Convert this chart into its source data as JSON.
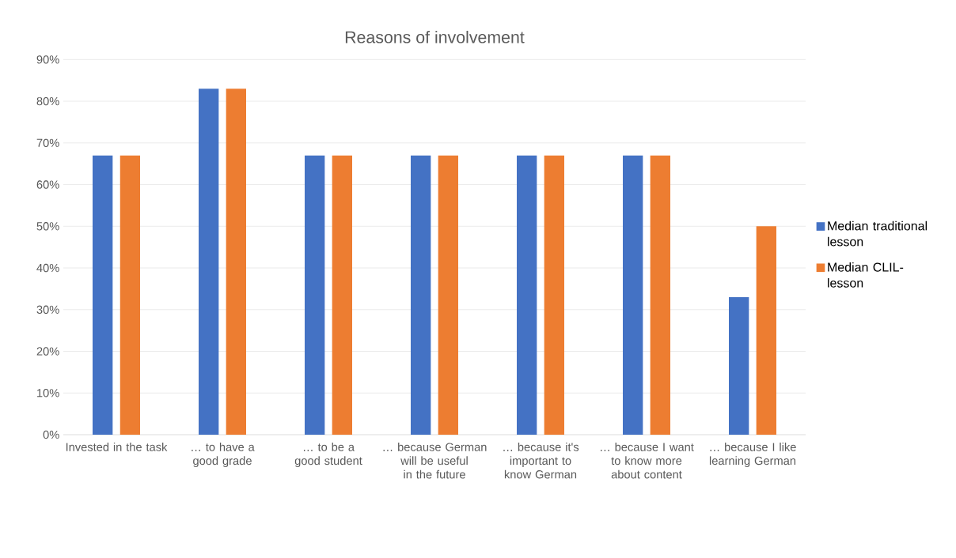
{
  "chart_data": {
    "type": "bar",
    "title": "Reasons of involvement",
    "categories": [
      "Invested in the task",
      "… to have a good grade",
      "… to be a good student",
      "… because German will be useful in the future",
      "… because it's important to know German",
      "… because I want to know more about content",
      "… because I like learning German"
    ],
    "series": [
      {
        "name": "Median traditional lesson",
        "color": "#4472c4",
        "values": [
          67,
          83,
          67,
          67,
          67,
          67,
          33
        ]
      },
      {
        "name": "Median CLIL-lesson",
        "color": "#ed7d31",
        "values": [
          67,
          83,
          67,
          67,
          67,
          67,
          50
        ]
      }
    ],
    "ylim": [
      0,
      90
    ],
    "yticks": [
      {
        "value": 0,
        "label": "0%"
      },
      {
        "value": 10,
        "label": "10%"
      },
      {
        "value": 20,
        "label": "20%"
      },
      {
        "value": 30,
        "label": "30%"
      },
      {
        "value": 40,
        "label": "40%"
      },
      {
        "value": 50,
        "label": "50%"
      },
      {
        "value": 60,
        "label": "60%"
      },
      {
        "value": 70,
        "label": "70%"
      },
      {
        "value": 80,
        "label": "80%"
      },
      {
        "value": 90,
        "label": "90%"
      }
    ],
    "grid": "y",
    "legend": "right"
  }
}
